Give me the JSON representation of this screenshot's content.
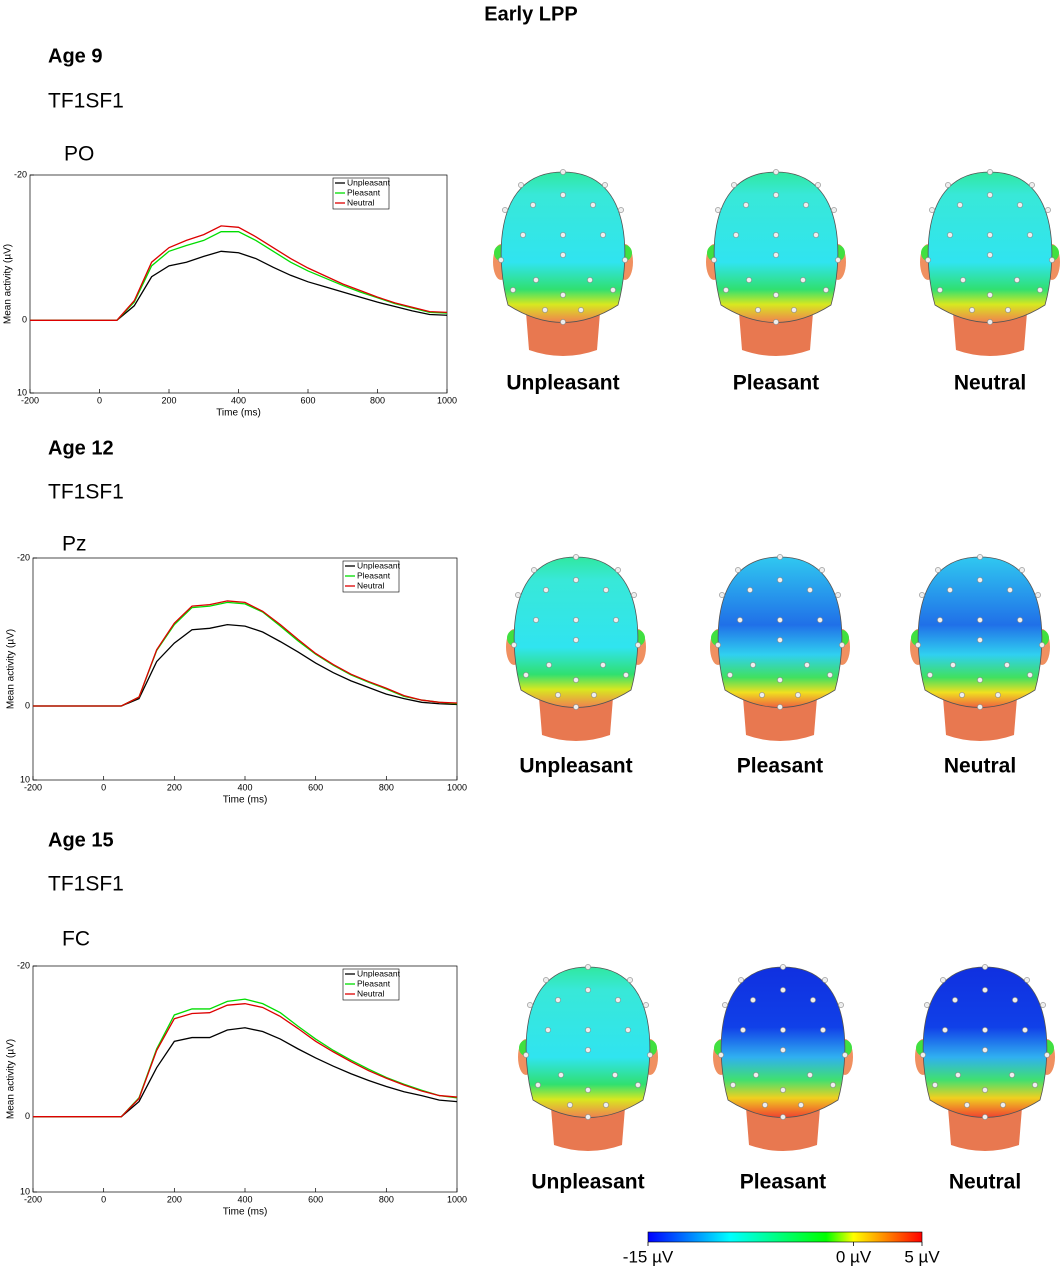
{
  "title": "Early LPP",
  "panels": [
    {
      "age": "Age 9",
      "condition": "TF1SF1",
      "topomap_labels": [
        "Unpleasant",
        "Pleasant",
        "Neutral"
      ]
    },
    {
      "age": "Age 12",
      "condition": "TF1SF1",
      "topomap_labels": [
        "Unpleasant",
        "Pleasant",
        "Neutral"
      ]
    },
    {
      "age": "Age 15",
      "condition": "TF1SF1",
      "topomap_labels": [
        "Unpleasant",
        "Pleasant",
        "Neutral"
      ]
    }
  ],
  "chart_data": [
    {
      "type": "line",
      "title": "PO",
      "xlabel": "Time (ms)",
      "ylabel": "Mean activity (µV)",
      "x": [
        -200,
        -150,
        -100,
        -50,
        0,
        50,
        100,
        150,
        200,
        250,
        300,
        350,
        400,
        450,
        500,
        550,
        600,
        650,
        700,
        750,
        800,
        850,
        900,
        950,
        1000
      ],
      "xlim": [
        -200,
        1000
      ],
      "xticks": [
        -200,
        0,
        200,
        400,
        600,
        800,
        1000
      ],
      "ylim": [
        10,
        -20
      ],
      "yticks": [
        -20,
        0,
        10
      ],
      "legend": "upper right",
      "series": [
        {
          "name": "Unpleasant",
          "color": "#000000",
          "values": [
            0,
            0,
            0,
            0,
            0,
            0,
            -2,
            -6,
            -7.5,
            -8,
            -8.8,
            -9.5,
            -9.3,
            -8.5,
            -7.3,
            -6.2,
            -5.3,
            -4.6,
            -3.9,
            -3.2,
            -2.5,
            -1.9,
            -1.3,
            -0.8,
            -0.7
          ]
        },
        {
          "name": "Pleasant",
          "color": "#00dd00",
          "values": [
            0,
            0,
            0,
            0,
            0,
            0,
            -2.5,
            -7.5,
            -9.5,
            -10.3,
            -11,
            -12.2,
            -12.2,
            -11,
            -9.5,
            -8,
            -6.8,
            -5.8,
            -4.8,
            -3.9,
            -3.1,
            -2.3,
            -1.7,
            -1.1,
            -1
          ]
        },
        {
          "name": "Neutral",
          "color": "#dd0000",
          "values": [
            0,
            0,
            0,
            0,
            0,
            0,
            -2.7,
            -8,
            -10,
            -11,
            -11.8,
            -13,
            -12.8,
            -11.5,
            -10,
            -8.5,
            -7.2,
            -6.1,
            -5,
            -4.1,
            -3.2,
            -2.4,
            -1.8,
            -1.2,
            -1.1
          ]
        }
      ]
    },
    {
      "type": "line",
      "title": "Pz",
      "xlabel": "Time (ms)",
      "ylabel": "Mean activity (µV)",
      "x": [
        -200,
        -150,
        -100,
        -50,
        0,
        50,
        100,
        150,
        200,
        250,
        300,
        350,
        400,
        450,
        500,
        550,
        600,
        650,
        700,
        750,
        800,
        850,
        900,
        950,
        1000
      ],
      "xlim": [
        -200,
        1000
      ],
      "xticks": [
        -200,
        0,
        200,
        400,
        600,
        800,
        1000
      ],
      "ylim": [
        10,
        -20
      ],
      "yticks": [
        -20,
        0,
        10
      ],
      "legend": "upper right",
      "series": [
        {
          "name": "Unpleasant",
          "color": "#000000",
          "values": [
            0,
            0,
            0,
            0,
            0,
            0,
            -1,
            -6,
            -8.5,
            -10.3,
            -10.5,
            -11,
            -10.8,
            -10,
            -8.7,
            -7.3,
            -5.8,
            -4.5,
            -3.4,
            -2.5,
            -1.6,
            -1,
            -0.5,
            -0.3,
            -0.2
          ]
        },
        {
          "name": "Pleasant",
          "color": "#00dd00",
          "values": [
            0,
            0,
            0,
            0,
            0,
            0,
            -1.2,
            -7.5,
            -11,
            -13.3,
            -13.5,
            -14,
            -13.8,
            -12.7,
            -10.8,
            -8.8,
            -7,
            -5.5,
            -4.2,
            -3.2,
            -2.3,
            -1.3,
            -0.8,
            -0.5,
            -0.3
          ]
        },
        {
          "name": "Neutral",
          "color": "#dd0000",
          "values": [
            0,
            0,
            0,
            0,
            0,
            0,
            -1.2,
            -7.6,
            -11.2,
            -13.5,
            -13.7,
            -14.2,
            -14,
            -12.8,
            -11,
            -9,
            -7.1,
            -5.6,
            -4.3,
            -3.3,
            -2.4,
            -1.4,
            -0.8,
            -0.5,
            -0.4
          ]
        }
      ]
    },
    {
      "type": "line",
      "title": "FC",
      "xlabel": "Time (ms)",
      "ylabel": "Mean activity (µV)",
      "x": [
        -200,
        -150,
        -100,
        -50,
        0,
        50,
        100,
        150,
        200,
        250,
        300,
        350,
        400,
        450,
        500,
        550,
        600,
        650,
        700,
        750,
        800,
        850,
        900,
        950,
        1000
      ],
      "xlim": [
        -200,
        1000
      ],
      "xticks": [
        -200,
        0,
        200,
        400,
        600,
        800,
        1000
      ],
      "ylim": [
        10,
        -20
      ],
      "yticks": [
        -20,
        0,
        10
      ],
      "legend": "upper right",
      "series": [
        {
          "name": "Unpleasant",
          "color": "#000000",
          "values": [
            0,
            0,
            0,
            0,
            0,
            0,
            -2,
            -6.5,
            -10,
            -10.5,
            -10.5,
            -11.5,
            -11.8,
            -11.3,
            -10.3,
            -9,
            -7.8,
            -6.7,
            -5.7,
            -4.8,
            -4,
            -3.3,
            -2.8,
            -2.2,
            -2
          ]
        },
        {
          "name": "Pleasant",
          "color": "#00dd00",
          "values": [
            0,
            0,
            0,
            0,
            0,
            0,
            -2.5,
            -9,
            -13.5,
            -14.3,
            -14.3,
            -15.3,
            -15.6,
            -15,
            -13.8,
            -12,
            -10.3,
            -8.8,
            -7.5,
            -6.3,
            -5.2,
            -4.3,
            -3.5,
            -2.8,
            -2.5
          ]
        },
        {
          "name": "Neutral",
          "color": "#dd0000",
          "values": [
            0,
            0,
            0,
            0,
            0,
            0,
            -2.4,
            -8.8,
            -13,
            -13.7,
            -13.8,
            -14.8,
            -15,
            -14.5,
            -13.3,
            -11.7,
            -10,
            -8.6,
            -7.3,
            -6.1,
            -5.1,
            -4.2,
            -3.4,
            -2.8,
            -2.6
          ]
        }
      ]
    }
  ],
  "colorbar": {
    "lim": [
      -15,
      5
    ],
    "ticks": [
      {
        "value": -15,
        "label": "-15 µV"
      },
      {
        "value": 0,
        "label": "0 µV"
      },
      {
        "value": 5,
        "label": "5 µV"
      }
    ]
  }
}
